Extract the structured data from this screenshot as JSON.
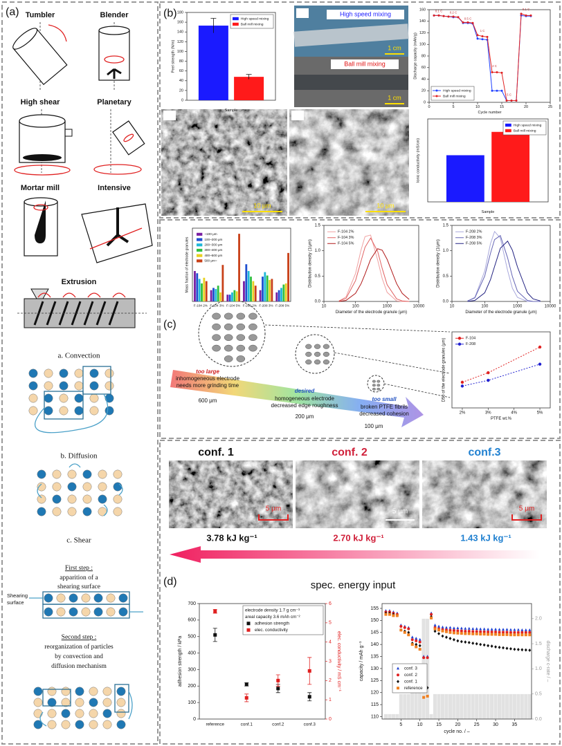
{
  "figure": {
    "a": {
      "label": "(a)",
      "mixers": [
        "Tumbler",
        "Blender",
        "High shear",
        "Planetary",
        "Mortar mill",
        "Intensive",
        "Extrusion"
      ],
      "convection": "a. Convection",
      "diffusion": "b. Diffusion",
      "shear": "c. Shear",
      "first_step": [
        "First step :",
        "apparition of a",
        "shearing surface"
      ],
      "shearing_surface": [
        "Shearing",
        "surface"
      ],
      "second_step": [
        "Second step :",
        "reorganization of particles",
        "by convection and",
        "diffusion mechanism"
      ]
    },
    "b": {
      "label": "(b)",
      "photo_labels": [
        "High speed mixing",
        "Ball mill mixing"
      ],
      "photo_scale": [
        "1 cm",
        "1 cm"
      ],
      "sem_scale": [
        "10 μm",
        "10 μm"
      ]
    },
    "c": {
      "label": "(c)",
      "too_large": "too large",
      "large_lines": [
        "inhomogeneous electrode",
        "needs more grinding time"
      ],
      "large_size": "600 μm",
      "desired": "desired",
      "desired_lines": [
        "homogeneous electrode",
        "decreased edge roughness"
      ],
      "desired_size": "200 μm",
      "too_small": "too small",
      "small_lines": [
        "broken PTFE fibrils",
        "decreased cohesion"
      ],
      "small_size": "100 μm"
    },
    "d": {
      "label": "(d)",
      "confs": [
        "conf. 1",
        "conf. 2",
        "conf.3"
      ],
      "energies": [
        "3.78 kJ kg⁻¹",
        "2.70 kJ kg⁻¹",
        "1.43 kJ kg⁻¹"
      ],
      "sem_scale": [
        "5 μm",
        "5 μm",
        "5 μm"
      ],
      "arrow_label": "spec. energy input"
    }
  },
  "chart_data": [
    {
      "type": "bar",
      "categories": [
        null
      ],
      "xlabel": "Sample",
      "ylabel": "Peel strength (N/m)",
      "ylim": [
        0,
        180
      ],
      "yticks": [
        0,
        20,
        40,
        60,
        80,
        100,
        120,
        140,
        160,
        180
      ],
      "legend": "top-right",
      "series": [
        {
          "name": "High speed mixing",
          "color": "#1a1aff",
          "values": [
            153
          ],
          "errors": [
            15
          ]
        },
        {
          "name": "Ball mill mixing",
          "color": "#ff1a1a",
          "values": [
            48
          ],
          "errors": [
            5
          ]
        }
      ]
    },
    {
      "type": "line",
      "x": [
        1,
        2,
        3,
        4,
        5,
        6,
        7,
        8,
        9,
        10,
        11,
        12,
        13,
        14,
        15,
        16,
        17,
        18,
        19,
        20,
        21
      ],
      "xlabel": "Cycle number",
      "ylabel": "Discharge capacity (mAh/g)",
      "xlim": [
        0,
        25
      ],
      "xticks": [
        0,
        5,
        10,
        15,
        20,
        25
      ],
      "ylim": [
        0,
        160
      ],
      "yticks": [
        0,
        20,
        40,
        60,
        80,
        100,
        120,
        140,
        160
      ],
      "legend": "bottom-left",
      "series": [
        {
          "name": "High speed mixing",
          "color": "#2040ff",
          "marker": "circle",
          "values": [
            150,
            150,
            149,
            148,
            147,
            147,
            137,
            137,
            136,
            110,
            109,
            108,
            20,
            20,
            20,
            3,
            3,
            3,
            150,
            149,
            149
          ]
        },
        {
          "name": "Ball mill mixing",
          "color": "#e02020",
          "marker": "circle",
          "values": [
            150,
            150,
            149,
            148,
            148,
            147,
            138,
            138,
            137,
            116,
            114,
            113,
            52,
            52,
            51,
            3,
            3,
            3,
            153,
            150,
            150
          ]
        }
      ],
      "annotations": [
        {
          "text": "0.1 C",
          "x": 2,
          "y": 157
        },
        {
          "text": "0.2 C",
          "x": 5,
          "y": 155
        },
        {
          "text": "0.5 C",
          "x": 8,
          "y": 144
        },
        {
          "text": "1 C",
          "x": 11,
          "y": 123
        },
        {
          "text": "2 C",
          "x": 13.5,
          "y": 62
        },
        {
          "text": "5 C",
          "x": 16.5,
          "y": 13
        },
        {
          "text": "0.1 C",
          "x": 20,
          "y": 160
        }
      ]
    },
    {
      "type": "bar",
      "categories": [
        null
      ],
      "xlabel": "Sample",
      "ylabel": "Ionic conductivity (mS/cm)",
      "ylim": [
        0,
        1.6
      ],
      "legend": "top-right",
      "series": [
        {
          "name": "High speed mixing",
          "color": "#1a1aff",
          "values": [
            0.9
          ]
        },
        {
          "name": "Ball mill mixing",
          "color": "#ff1a1a",
          "values": [
            1.35
          ]
        }
      ]
    },
    {
      "type": "bar",
      "categories": [
        "F-104 2%",
        "F-104 3%",
        "F-104 5%",
        "F-208 2%",
        "F-208 3%",
        "F-208 5%"
      ],
      "ylabel": "Mass fraction of electrode granules",
      "ylim": [
        0,
        0.65
      ],
      "legend": "top-left",
      "series": [
        {
          "name": "~100 μm",
          "color": "#7a1fa2",
          "values": [
            0.27,
            0.1,
            0.06,
            0.18,
            0.1,
            0.08
          ]
        },
        {
          "name": "100~200 μm",
          "color": "#1f4fd0",
          "values": [
            0.25,
            0.12,
            0.06,
            0.33,
            0.22,
            0.1
          ]
        },
        {
          "name": "200~300 μm",
          "color": "#20b8d8",
          "values": [
            0.2,
            0.11,
            0.08,
            0.27,
            0.26,
            0.12
          ]
        },
        {
          "name": "300~400 μm",
          "color": "#30c040",
          "values": [
            0.16,
            0.14,
            0.1,
            0.22,
            0.23,
            0.15
          ]
        },
        {
          "name": "400~500 μm",
          "color": "#e8d020",
          "values": [
            0.21,
            0.08,
            0.09,
            0.18,
            0.19,
            0.16
          ]
        },
        {
          "name": "500 μm~",
          "color": "#c84018",
          "values": [
            0.18,
            0.34,
            0.6,
            0.14,
            0.2,
            0.43
          ]
        }
      ]
    },
    {
      "type": "line",
      "xlog": true,
      "x": [
        30,
        50,
        100,
        150,
        200,
        300,
        500,
        700,
        1000,
        2000,
        3000,
        5000
      ],
      "xlabel": "Diameter of the electrode granule (μm)",
      "ylabel": "Distribution density (1/μm)",
      "xlim": [
        10,
        10000
      ],
      "xticks": [
        10,
        100,
        1000,
        10000
      ],
      "ylim": [
        0,
        1.5
      ],
      "yticks": [
        {
          "value": 0,
          "label": "0.0"
        },
        0.5,
        {
          "value": 1,
          "label": "1.0"
        },
        1.5
      ],
      "legend": "top-left",
      "series": [
        {
          "name": "F-104 2%",
          "color": "#f0a0a0",
          "values": [
            0.01,
            0.09,
            0.55,
            1.02,
            1.28,
            1.31,
            0.82,
            0.45,
            0.18,
            0.01,
            0,
            0
          ]
        },
        {
          "name": "F-104 3%",
          "color": "#e06060",
          "values": [
            0.01,
            0.06,
            0.41,
            0.8,
            1.07,
            1.25,
            0.99,
            0.65,
            0.33,
            0.05,
            0.01,
            0
          ]
        },
        {
          "name": "F-104 5%",
          "color": "#b01818",
          "values": [
            0,
            0.02,
            0.16,
            0.35,
            0.54,
            0.83,
            1.04,
            1.01,
            0.83,
            0.35,
            0.16,
            0.04
          ]
        }
      ]
    },
    {
      "type": "line",
      "xlog": true,
      "x": [
        30,
        50,
        100,
        150,
        200,
        300,
        500,
        700,
        1000,
        2000,
        3000,
        5000
      ],
      "xlabel": "Diameter of the electrode granule (μm)",
      "ylabel": "Distribution density (1/μm)",
      "xlim": [
        10,
        10000
      ],
      "xticks": [
        10,
        100,
        1000,
        10000
      ],
      "ylim": [
        0,
        1.5
      ],
      "yticks": [
        {
          "value": 0,
          "label": "0.0"
        },
        0.5,
        {
          "value": 1,
          "label": "1.0"
        },
        1.5
      ],
      "legend": "top-left",
      "series": [
        {
          "name": "F-208 2%",
          "color": "#a8a8dc",
          "values": [
            0.01,
            0.08,
            0.6,
            1.14,
            1.38,
            1.25,
            0.61,
            0.26,
            0.08,
            0,
            0,
            0
          ]
        },
        {
          "name": "F-208 3%",
          "color": "#6464b4",
          "values": [
            0.01,
            0.07,
            0.5,
            0.95,
            1.22,
            1.3,
            0.86,
            0.49,
            0.2,
            0.02,
            0,
            0
          ]
        },
        {
          "name": "F-208 5%",
          "color": "#202080",
          "values": [
            0,
            0.02,
            0.17,
            0.43,
            0.69,
            1.05,
            1.19,
            1.01,
            0.68,
            0.17,
            0.05,
            0.01
          ]
        }
      ]
    },
    {
      "type": "line",
      "x": [
        2,
        3,
        5
      ],
      "xlabel": "PTFE wt.%",
      "ylabel": "D50 of the electrode granules (μm)",
      "xlim": [
        1.6,
        5.4
      ],
      "xticks": [
        {
          "value": 2,
          "label": "2%"
        },
        {
          "value": 3,
          "label": "3%"
        },
        {
          "value": 4,
          "label": "4%"
        },
        {
          "value": 5,
          "label": "5%"
        }
      ],
      "ylim": [
        0,
        800
      ],
      "legend": "top-left",
      "series": [
        {
          "name": "F-104",
          "color": "#e02020",
          "marker": "circle",
          "dash": true,
          "values": [
            270,
            370,
            640
          ]
        },
        {
          "name": "F-208",
          "color": "#2020d0",
          "marker": "circle",
          "dash": true,
          "values": [
            230,
            290,
            460
          ]
        }
      ]
    },
    {
      "type": "scatter",
      "categories": [
        "reference",
        "conf.1",
        "conf.2",
        "conf.3"
      ],
      "ylabel": "adhesion strength / kPa",
      "y2label": "elec. conductivity / mS cm⁻¹",
      "ylim": [
        0,
        700
      ],
      "yticks": [
        0,
        100,
        200,
        300,
        400,
        500,
        600,
        700
      ],
      "y2lim": [
        0,
        6
      ],
      "y2ticks": [
        0,
        1,
        2,
        3,
        4,
        5,
        6
      ],
      "y2color": "#e02020",
      "legend": "top-right",
      "notes": [
        "electrode density 1.7 g cm⁻³",
        "areal capacity 3.6 mAh cm⁻²"
      ],
      "series": [
        {
          "name": "adhesion strength",
          "color": "#111111",
          "marker": "square",
          "values": [
            510,
            210,
            185,
            135
          ],
          "errors": [
            40,
            10,
            25,
            25
          ]
        },
        {
          "name": "elec. conductivity",
          "color": "#e02020",
          "marker": "square",
          "axis": "y2",
          "values": [
            5.6,
            1.1,
            2.0,
            2.5
          ],
          "errors": [
            0.1,
            0.2,
            0.3,
            0.7
          ]
        }
      ]
    },
    {
      "type": "scatter",
      "x": [
        1,
        2,
        3,
        4,
        5,
        6,
        7,
        8,
        9,
        10,
        11,
        12,
        13,
        14,
        15,
        16,
        17,
        18,
        19,
        20,
        21,
        22,
        23,
        24,
        25,
        26,
        27,
        28,
        29,
        30,
        31,
        32,
        33,
        34,
        35,
        36,
        37,
        38,
        39
      ],
      "xlabel": "cycle no. / –",
      "ylabel": "capacity / mAh g⁻¹",
      "y2label": "discharge c-rate / –",
      "xlim": [
        0,
        39.5
      ],
      "xticks": [
        5,
        10,
        15,
        20,
        25,
        30,
        35
      ],
      "ylim": [
        109,
        157
      ],
      "yticks": [
        110,
        115,
        120,
        125,
        130,
        135,
        140,
        145,
        150,
        155
      ],
      "y2lim": [
        0,
        2.3
      ],
      "y2ticks": [
        {
          "value": 0,
          "label": "0.0"
        },
        0.5,
        {
          "value": 1,
          "label": "1.0"
        },
        1.5,
        {
          "value": 2,
          "label": "2.0"
        }
      ],
      "y2color": "#999999",
      "legend": "bottom-left",
      "c_rate": {
        "color": "#e2e2e2",
        "values": [
          0.1,
          0.1,
          0.1,
          0.1,
          0.5,
          0.5,
          0.5,
          1,
          1,
          1,
          2,
          2,
          0.1,
          0.5,
          0.5,
          0.5,
          0.5,
          0.5,
          0.5,
          0.5,
          0.5,
          0.5,
          0.5,
          0.5,
          0.5,
          0.5,
          0.5,
          0.5,
          0.5,
          0.5,
          0.5,
          0.5,
          0.5,
          0.5,
          0.5,
          0.5,
          0.5,
          0.5,
          0.5
        ]
      },
      "series": [
        {
          "name": "conf. 3",
          "color": "#2040d0",
          "marker": "triangle",
          "values": [
            154,
            154,
            153.5,
            153,
            148,
            147.5,
            147,
            143,
            142.5,
            142,
            135,
            135,
            153,
            148,
            147.5,
            147.2,
            147,
            147,
            146.8,
            146.8,
            146.7,
            146.6,
            146.6,
            146.5,
            146.5,
            146.4,
            146.4,
            146.3,
            146.3,
            146.3,
            146.2,
            146.2,
            146.2,
            146.1,
            146.1,
            146.1,
            146,
            146,
            146
          ]
        },
        {
          "name": "conf. 2",
          "color": "#e02020",
          "marker": "circle",
          "values": [
            153.5,
            153.5,
            153,
            152.5,
            147.5,
            147,
            146.5,
            142,
            141.5,
            141,
            134.5,
            134.5,
            152.5,
            147,
            146.5,
            146.2,
            146,
            145.9,
            145.8,
            145.7,
            145.6,
            145.5,
            145.5,
            145.4,
            145.4,
            145.3,
            145.3,
            145.2,
            145.2,
            145.2,
            145.1,
            145.1,
            145.1,
            145,
            145,
            145,
            145,
            145,
            145
          ]
        },
        {
          "name": "conf. 1",
          "color": "#111111",
          "marker": "diamond",
          "values": [
            153,
            153,
            152.5,
            152,
            146,
            145.5,
            145,
            140.5,
            140,
            139.5,
            122,
            122,
            151.5,
            145.5,
            144.5,
            143.5,
            143,
            142.5,
            142,
            141.5,
            141.2,
            141,
            140.8,
            140.5,
            140.3,
            140,
            139.8,
            139.5,
            139.3,
            139,
            138.8,
            138.6,
            138.4,
            138.2,
            138,
            137.9,
            137.8,
            137.7,
            137.6
          ]
        },
        {
          "name": "reference",
          "color": "#f08020",
          "marker": "square",
          "values": [
            152.5,
            152.5,
            152,
            152,
            146,
            145,
            144,
            140,
            139,
            138,
            118,
            118.5,
            151,
            146.5,
            146,
            145.6,
            145.3,
            145,
            144.8,
            144.7,
            144.6,
            144.5,
            144.5,
            144.4,
            144.4,
            144.3,
            144.3,
            144.2,
            144.2,
            144.2,
            144.1,
            144.1,
            144.1,
            144,
            144,
            144,
            144,
            144,
            144
          ]
        }
      ]
    }
  ]
}
